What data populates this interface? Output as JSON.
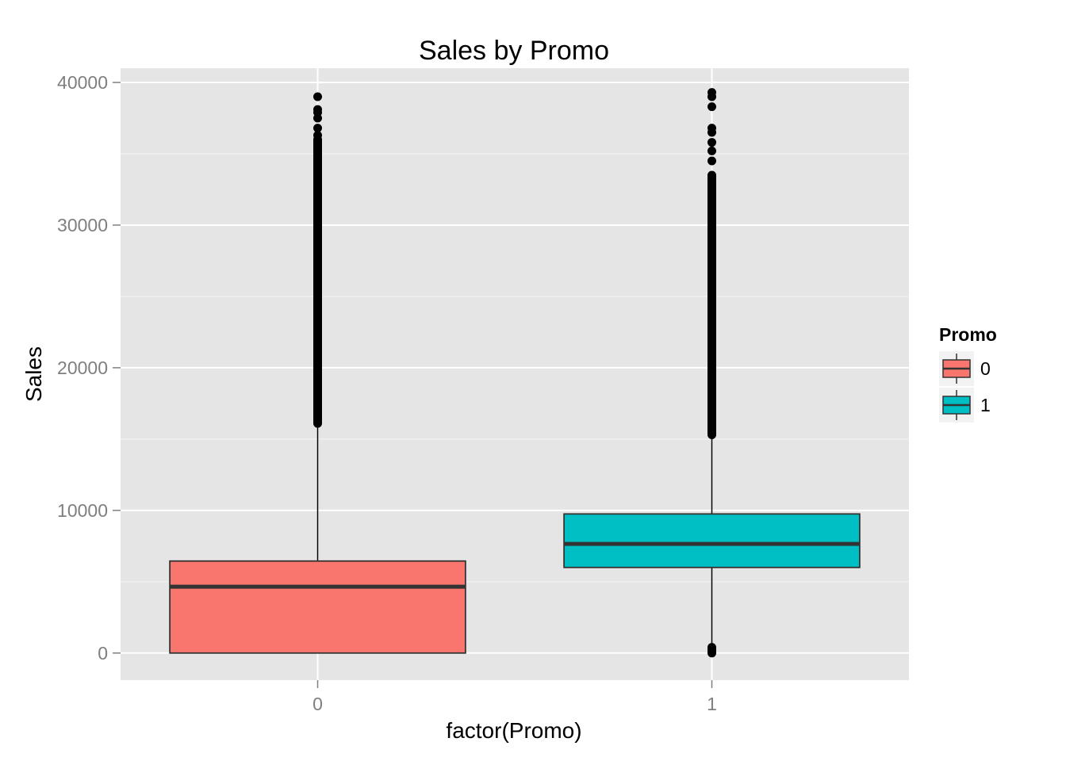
{
  "chart_data": {
    "type": "boxplot",
    "title": "Sales by Promo",
    "xlabel": "factor(Promo)",
    "ylabel": "Sales",
    "categories": [
      "0",
      "1"
    ],
    "ylim": [
      -1900,
      41000
    ],
    "yticks": [
      0,
      10000,
      20000,
      30000,
      40000
    ],
    "grid": true,
    "legend": {
      "title": "Promo",
      "position": "right",
      "items": [
        {
          "label": "0",
          "color": "#F8766D"
        },
        {
          "label": "1",
          "color": "#00BFC4"
        }
      ]
    },
    "series": [
      {
        "category": "0",
        "color": "#F8766D",
        "min": 0,
        "q1": 0,
        "median": 4650,
        "q3": 6450,
        "whisker_high": 16100,
        "outliers_low": [],
        "outliers_high_range": [
          16100,
          36000
        ],
        "outliers_high_sparse": [
          36300,
          36800,
          37500,
          37900,
          38100,
          39000
        ]
      },
      {
        "category": "1",
        "color": "#00BFC4",
        "min": 0,
        "q1": 6000,
        "median": 7650,
        "q3": 9750,
        "whisker_high": 15300,
        "outliers_low": [
          0,
          100,
          250,
          400
        ],
        "outliers_high_range": [
          15300,
          33500
        ],
        "outliers_high_sparse": [
          34500,
          35200,
          35800,
          36500,
          36800,
          38300,
          39000,
          39300
        ]
      }
    ]
  },
  "colors": {
    "panel": "#E5E5E5",
    "grid_major": "#FFFFFF",
    "grid_minor": "#F2F2F2",
    "box_stroke": "#333333"
  }
}
